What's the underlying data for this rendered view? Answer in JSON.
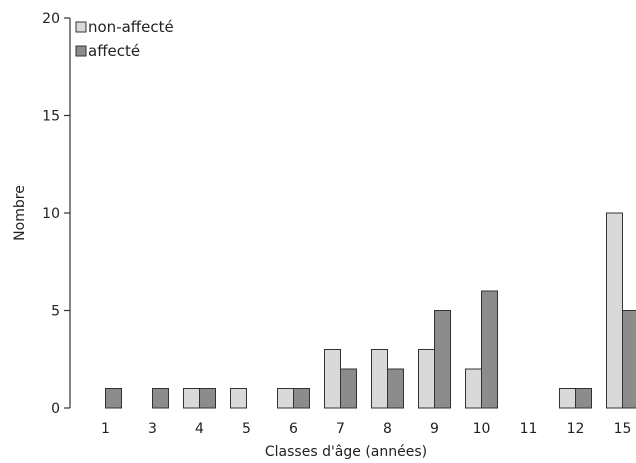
{
  "chart_data": {
    "type": "bar",
    "title": "",
    "xlabel": "Classes d'âge (années)",
    "ylabel": "Nombre",
    "ylim": [
      0,
      20
    ],
    "yticks": [
      "0",
      "5",
      "10",
      "15",
      "20"
    ],
    "categories": [
      "1",
      "3",
      "4",
      "5",
      "6",
      "7",
      "8",
      "9",
      "10",
      "11",
      "12",
      "15"
    ],
    "series": [
      {
        "name": "non-affecté",
        "color": "#d9d9d9",
        "values": [
          0,
          0,
          1,
          1,
          1,
          3,
          3,
          3,
          2,
          0,
          1,
          10
        ]
      },
      {
        "name": "affecté",
        "color": "#8c8c8c",
        "values": [
          1,
          1,
          1,
          0,
          1,
          2,
          2,
          5,
          6,
          0,
          1,
          5
        ]
      }
    ],
    "legend_position": "top-left",
    "grid": false
  }
}
